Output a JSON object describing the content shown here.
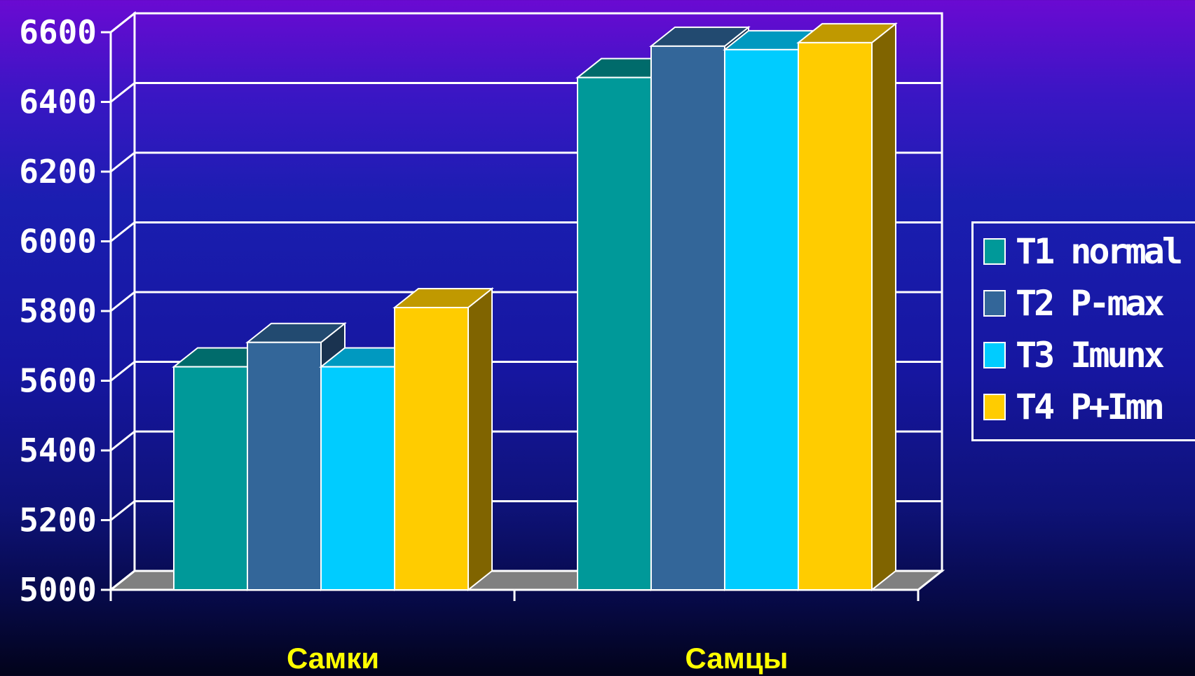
{
  "chart_data": {
    "type": "bar",
    "title": "",
    "xlabel": "",
    "ylabel": "",
    "categories": [
      "Самки",
      "Самцы"
    ],
    "series": [
      {
        "name": "T1 normal",
        "values": [
          5640,
          6470
        ],
        "color": "#009999",
        "top_color": "#006b6b",
        "side_color": "#005555"
      },
      {
        "name": "T2 P-max",
        "values": [
          5710,
          6560
        ],
        "color": "#336699",
        "top_color": "#224a70",
        "side_color": "#1a3350"
      },
      {
        "name": "T3 Imunx",
        "values": [
          5640,
          6550
        ],
        "color": "#00ccff",
        "top_color": "#0099c0",
        "side_color": "#0088aa"
      },
      {
        "name": "T4 P+Imn",
        "values": [
          5810,
          6570
        ],
        "color": "#ffcc00",
        "top_color": "#c09900",
        "side_color": "#806400"
      }
    ],
    "ylim": [
      5000,
      6600
    ],
    "yticks": [
      5000,
      5200,
      5400,
      5600,
      5800,
      6000,
      6200,
      6400,
      6600
    ],
    "grid": true,
    "legend_position": "right",
    "floor_color": "#808080",
    "grid_color": "#ffffff",
    "label_color": "#ffff00"
  }
}
